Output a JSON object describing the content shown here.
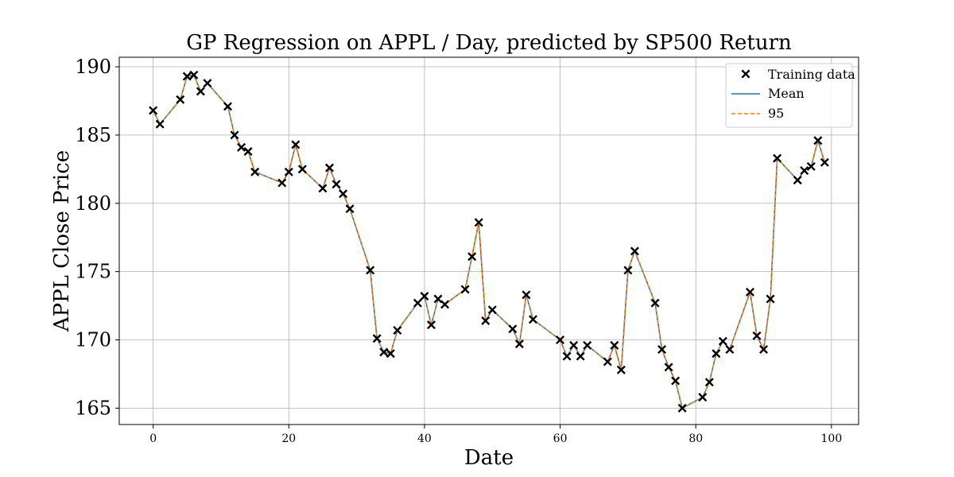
{
  "chart_data": {
    "type": "line",
    "title": "GP Regression on APPL / Day, predicted by SP500 Return",
    "xlabel": "Date",
    "ylabel": "APPL Close Price",
    "xlim": [
      -5,
      104
    ],
    "ylim": [
      163.8,
      190.7
    ],
    "xticks": [
      0,
      20,
      40,
      60,
      80,
      100
    ],
    "yticks": [
      165,
      170,
      175,
      180,
      185,
      190
    ],
    "grid": true,
    "legend_position": "top-right",
    "colors": {
      "mean": "#1f77b4",
      "bound": "#ff7f0e",
      "marker": "#000000"
    },
    "legend": {
      "training_label": "Training data",
      "mean_label": "Mean",
      "bound_label": "95"
    },
    "x": [
      0,
      1,
      4,
      5,
      6,
      7,
      8,
      11,
      12,
      13,
      14,
      15,
      19,
      20,
      21,
      22,
      25,
      26,
      27,
      28,
      29,
      32,
      33,
      34,
      35,
      36,
      39,
      40,
      41,
      42,
      43,
      46,
      47,
      48,
      49,
      50,
      53,
      54,
      55,
      56,
      60,
      61,
      62,
      63,
      64,
      67,
      68,
      69,
      70,
      71,
      74,
      75,
      76,
      77,
      78,
      81,
      82,
      83,
      84,
      85,
      88,
      89,
      90,
      91,
      92,
      95,
      96,
      97,
      98,
      99
    ],
    "series": [
      {
        "name": "Training data",
        "values": [
          186.8,
          185.8,
          187.6,
          189.3,
          189.4,
          188.2,
          188.8,
          187.1,
          185.0,
          184.1,
          183.8,
          182.3,
          181.5,
          182.3,
          184.3,
          182.5,
          181.1,
          182.6,
          181.4,
          180.7,
          179.6,
          175.1,
          170.1,
          169.1,
          169.0,
          170.7,
          172.7,
          173.2,
          171.1,
          173.0,
          172.6,
          173.7,
          176.1,
          178.6,
          171.4,
          172.2,
          170.8,
          169.7,
          173.3,
          171.5,
          170.0,
          168.8,
          169.6,
          168.8,
          169.6,
          168.4,
          169.6,
          167.8,
          175.1,
          176.5,
          172.7,
          169.3,
          168.0,
          167.0,
          165.0,
          165.8,
          166.9,
          169.0,
          169.9,
          169.3,
          173.5,
          170.3,
          169.3,
          173.0,
          183.3,
          181.7,
          182.4,
          182.7,
          184.6,
          183.0
        ]
      }
    ]
  }
}
